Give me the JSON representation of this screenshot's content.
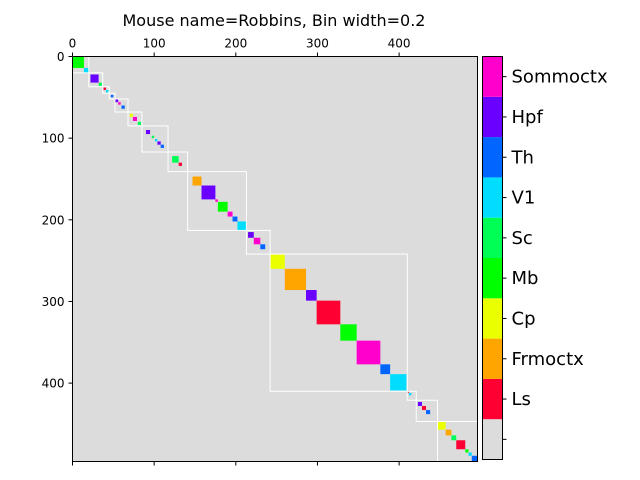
{
  "chart_data": {
    "type": "heatmap",
    "title": "Mouse name=Robbins, Bin width=0.2",
    "xlabel": "",
    "ylabel": "",
    "xlim": [
      0,
      496
    ],
    "ylim": [
      496,
      0
    ],
    "x_ticks": [
      "0",
      "100",
      "200",
      "300",
      "400"
    ],
    "y_ticks": [
      "0",
      "100",
      "200",
      "300",
      "400"
    ],
    "background_color": "#dcdcdc",
    "colorbar": {
      "labels": [
        "",
        "Ls",
        "Frmoctx",
        "Cp",
        "Mb",
        "Sc",
        "V1",
        "Th",
        "Hpf",
        "Sommoctx"
      ],
      "colors": [
        "#dcdcdc",
        "#ff0033",
        "#ffa500",
        "#eaff00",
        "#00ff00",
        "#00ff55",
        "#00ddff",
        "#0066ff",
        "#6a00ff",
        "#ff00cc"
      ]
    },
    "blocks": [
      {
        "start": 0,
        "end": 14,
        "region": "Mb"
      },
      {
        "start": 14,
        "end": 20,
        "region": "V1"
      },
      {
        "start": 22,
        "end": 32,
        "region": "Hpf"
      },
      {
        "start": 32,
        "end": 36,
        "region": "Sc"
      },
      {
        "start": 38,
        "end": 41,
        "region": "Ls"
      },
      {
        "start": 41,
        "end": 44,
        "region": "V1"
      },
      {
        "start": 47,
        "end": 50,
        "region": "Th"
      },
      {
        "start": 52,
        "end": 56,
        "region": "Hpf"
      },
      {
        "start": 56,
        "end": 59,
        "region": "Sommoctx"
      },
      {
        "start": 60,
        "end": 64,
        "region": "Th"
      },
      {
        "start": 70,
        "end": 74,
        "region": "Cp"
      },
      {
        "start": 74,
        "end": 79,
        "region": "Sommoctx"
      },
      {
        "start": 80,
        "end": 84,
        "region": "Sc"
      },
      {
        "start": 90,
        "end": 95,
        "region": "Hpf"
      },
      {
        "start": 97,
        "end": 100,
        "region": "Sc"
      },
      {
        "start": 101,
        "end": 104,
        "region": "V1"
      },
      {
        "start": 104,
        "end": 108,
        "region": "Hpf"
      },
      {
        "start": 108,
        "end": 112,
        "region": "Th"
      },
      {
        "start": 122,
        "end": 130,
        "region": "Sc"
      },
      {
        "start": 130,
        "end": 134,
        "region": "Ls"
      },
      {
        "start": 147,
        "end": 158,
        "region": "Frmoctx"
      },
      {
        "start": 158,
        "end": 175,
        "region": "Hpf"
      },
      {
        "start": 175,
        "end": 178,
        "region": "Sommoctx"
      },
      {
        "start": 178,
        "end": 190,
        "region": "Mb"
      },
      {
        "start": 190,
        "end": 196,
        "region": "Sommoctx"
      },
      {
        "start": 196,
        "end": 202,
        "region": "Th"
      },
      {
        "start": 202,
        "end": 213,
        "region": "V1"
      },
      {
        "start": 215,
        "end": 222,
        "region": "Hpf"
      },
      {
        "start": 222,
        "end": 230,
        "region": "Sommoctx"
      },
      {
        "start": 230,
        "end": 236,
        "region": "Th"
      },
      {
        "start": 242,
        "end": 260,
        "region": "Cp"
      },
      {
        "start": 260,
        "end": 286,
        "region": "Frmoctx"
      },
      {
        "start": 286,
        "end": 299,
        "region": "Hpf"
      },
      {
        "start": 299,
        "end": 328,
        "region": "Ls"
      },
      {
        "start": 328,
        "end": 348,
        "region": "Mb"
      },
      {
        "start": 348,
        "end": 377,
        "region": "Sommoctx"
      },
      {
        "start": 377,
        "end": 389,
        "region": "Th"
      },
      {
        "start": 389,
        "end": 409,
        "region": "V1"
      },
      {
        "start": 410,
        "end": 412,
        "region": "Ls"
      },
      {
        "start": 412,
        "end": 415,
        "region": "V1"
      },
      {
        "start": 423,
        "end": 428,
        "region": "Hpf"
      },
      {
        "start": 428,
        "end": 433,
        "region": "Ls"
      },
      {
        "start": 433,
        "end": 438,
        "region": "Th"
      },
      {
        "start": 447,
        "end": 457,
        "region": "Cp"
      },
      {
        "start": 457,
        "end": 464,
        "region": "Frmoctx"
      },
      {
        "start": 464,
        "end": 470,
        "region": "Sc"
      },
      {
        "start": 470,
        "end": 481,
        "region": "Ls"
      },
      {
        "start": 481,
        "end": 485,
        "region": "Mb"
      },
      {
        "start": 485,
        "end": 489,
        "region": "V1"
      },
      {
        "start": 489,
        "end": 496,
        "region": "Th"
      }
    ],
    "clusters": [
      {
        "start": 0,
        "end": 20
      },
      {
        "start": 20,
        "end": 37
      },
      {
        "start": 37,
        "end": 45
      },
      {
        "start": 45,
        "end": 52
      },
      {
        "start": 52,
        "end": 68
      },
      {
        "start": 68,
        "end": 85
      },
      {
        "start": 85,
        "end": 117
      },
      {
        "start": 117,
        "end": 141
      },
      {
        "start": 141,
        "end": 213
      },
      {
        "start": 213,
        "end": 242
      },
      {
        "start": 242,
        "end": 410
      },
      {
        "start": 410,
        "end": 421
      },
      {
        "start": 421,
        "end": 447
      },
      {
        "start": 447,
        "end": 496
      }
    ]
  }
}
